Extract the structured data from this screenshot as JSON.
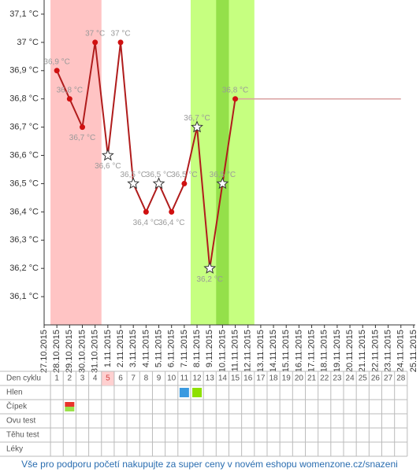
{
  "chart_data": {
    "type": "line",
    "x": [
      "27.10.2015",
      "28.10.2015",
      "29.10.2015",
      "30.10.2015",
      "31.10.2015",
      "1.11.2015",
      "2.11.2015",
      "3.11.2015",
      "4.11.2015",
      "5.11.2015",
      "6.11.2015",
      "7.11.2015",
      "8.11.2015",
      "9.11.2015",
      "10.11.2015",
      "11.11.2015",
      "12.11.2015",
      "13.11.2015",
      "14.11.2015",
      "15.11.2015",
      "16.11.2015",
      "17.11.2015",
      "18.11.2015",
      "19.11.2015",
      "20.11.2015",
      "21.11.2015",
      "22.11.2015",
      "23.11.2015",
      "24.11.2015",
      "25.11.2015"
    ],
    "series": [
      {
        "color": "#b01c1c",
        "values": [
          null,
          36.9,
          36.8,
          36.7,
          37.0,
          36.6,
          37.0,
          36.5,
          36.4,
          36.5,
          36.4,
          36.5,
          36.7,
          36.2,
          36.5,
          36.8,
          null,
          null,
          null,
          null,
          null,
          null,
          null,
          null,
          null,
          null,
          null,
          null,
          null,
          null
        ],
        "value_labels": [
          null,
          "36,9 °C",
          "36,8 °C",
          "36,7 °C",
          "37 °C",
          "36,6 °C",
          "37 °C",
          "36,5 °C",
          "36,4 °C",
          "36,5 °C",
          "36,4 °C",
          "36,5 °C",
          "36,7 °C",
          "36,2 °C",
          "36,5 °C",
          "36,8 °C",
          null,
          null,
          null,
          null,
          null,
          null,
          null,
          null,
          null,
          null,
          null,
          null,
          null,
          null
        ],
        "markers": [
          null,
          "dot",
          "dot",
          "dot",
          "dot",
          "star",
          "dot",
          "star",
          "dot",
          "star",
          "dot",
          "dot",
          "star",
          "star",
          "star",
          "dot",
          null,
          null,
          null,
          null,
          null,
          null,
          null,
          null,
          null,
          null,
          null,
          null,
          null,
          null
        ]
      },
      {
        "color": "#d9a0a0",
        "values": [
          null,
          null,
          null,
          null,
          null,
          null,
          null,
          null,
          null,
          null,
          null,
          null,
          null,
          null,
          null,
          36.8,
          36.8,
          36.8,
          36.8,
          36.8,
          36.8,
          36.8,
          36.8,
          36.8,
          36.8,
          36.8,
          36.8,
          36.8,
          36.8,
          null
        ]
      }
    ],
    "ylim": [
      36.0,
      37.15
    ],
    "yticks": [
      {
        "value": 36.1,
        "label": "36,1 °C"
      },
      {
        "value": 36.2,
        "label": "36,2 °C"
      },
      {
        "value": 36.3,
        "label": "36,3 °C"
      },
      {
        "value": 36.4,
        "label": "36,4 °C"
      },
      {
        "value": 36.5,
        "label": "36,5 °C"
      },
      {
        "value": 36.6,
        "label": "36,6 °C"
      },
      {
        "value": 36.7,
        "label": "36,7 °C"
      },
      {
        "value": 36.8,
        "label": "36,8 °C"
      },
      {
        "value": 36.9,
        "label": "36,9 °C"
      },
      {
        "value": 37.0,
        "label": "37 °C"
      },
      {
        "value": 37.1,
        "label": "37,1 °C"
      }
    ],
    "bands": [
      {
        "from": "28.10.2015",
        "to": "31.10.2015",
        "color": "#ffc4c4"
      },
      {
        "from": "8.11.2015",
        "to": "12.11.2015",
        "color": "#c6ff80"
      },
      {
        "from": "10.11.2015",
        "to": "10.11.2015",
        "color": "#94e04a"
      }
    ]
  },
  "table": {
    "rows": [
      {
        "label": "Den cyklu",
        "cells": [
          1,
          2,
          3,
          4,
          5,
          6,
          7,
          8,
          9,
          10,
          11,
          12,
          13,
          14,
          15,
          16,
          17,
          18,
          19,
          20,
          21,
          22,
          23,
          24,
          25,
          26,
          27,
          28
        ]
      },
      {
        "label": "Hlen"
      },
      {
        "label": "Čípek"
      },
      {
        "label": "Ovu test"
      },
      {
        "label": "Těhu test"
      },
      {
        "label": "Léky"
      }
    ],
    "highlight_day": 5,
    "marks": [
      {
        "row": 1,
        "day": 11,
        "colors": [
          "#3a9ae0"
        ]
      },
      {
        "row": 1,
        "day": 12,
        "colors": [
          "#8ee000"
        ]
      },
      {
        "row": 2,
        "day": 2,
        "colors": [
          "#e8342c",
          "#9be14a"
        ]
      }
    ]
  },
  "footer": "Vše pro podporu početí nakupujte za super ceny v novém eshopu womenzone.cz/snazeni"
}
